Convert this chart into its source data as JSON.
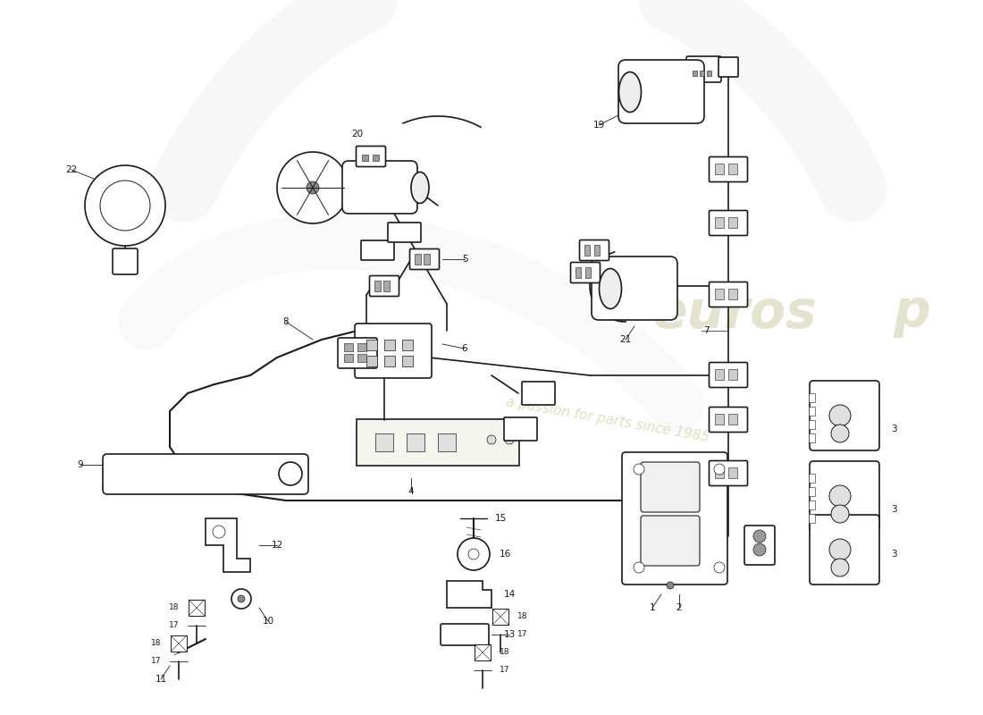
{
  "bg_color": "#ffffff",
  "lc": "#1a1a1a",
  "lw": 1.2,
  "watermark_color1": "#c8c8a0",
  "watermark_color2": "#d0cca0",
  "fig_w": 11.0,
  "fig_h": 8.0,
  "dpi": 100,
  "xlim": [
    0,
    110
  ],
  "ylim": [
    0,
    80
  ],
  "label_fs": 7.5
}
